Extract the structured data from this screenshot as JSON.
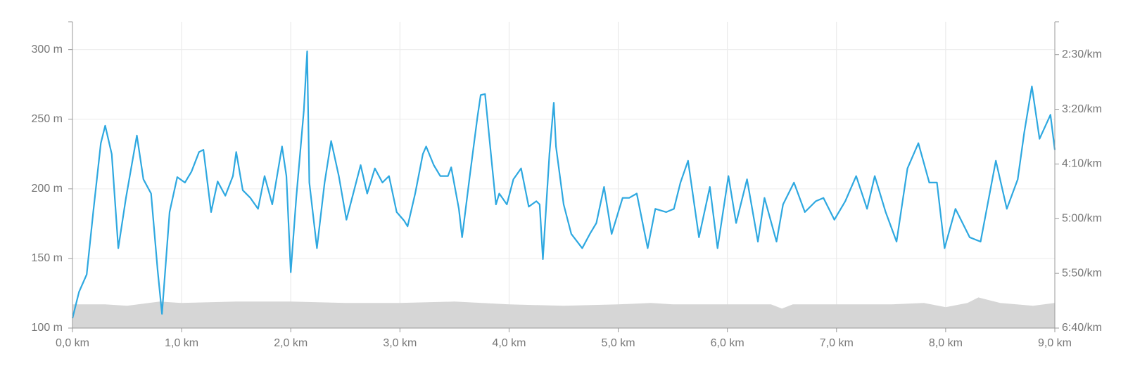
{
  "chart_data": {
    "type": "line",
    "xlim": [
      0,
      9
    ],
    "xticks": [
      {
        "value": 0,
        "label": "0,0 km"
      },
      {
        "value": 1,
        "label": "1,0 km"
      },
      {
        "value": 2,
        "label": "2,0 km"
      },
      {
        "value": 3,
        "label": "3,0 km"
      },
      {
        "value": 4,
        "label": "4,0 km"
      },
      {
        "value": 5,
        "label": "5,0 km"
      },
      {
        "value": 6,
        "label": "6,0 km"
      },
      {
        "value": 7,
        "label": "7,0 km"
      },
      {
        "value": 8,
        "label": "8,0 km"
      },
      {
        "value": 9,
        "label": "9,0 km"
      }
    ],
    "ylim": [
      100,
      320
    ],
    "yticks": [
      {
        "value": 100,
        "label": "100 m"
      },
      {
        "value": 150,
        "label": "150 m"
      },
      {
        "value": 200,
        "label": "200 m"
      },
      {
        "value": 250,
        "label": "250 m"
      },
      {
        "value": 300,
        "label": "300 m"
      }
    ],
    "y2lim": [
      400,
      120
    ],
    "y2ticks": [
      {
        "value": 150,
        "label": "2:30/km"
      },
      {
        "value": 200,
        "label": "3:20/km"
      },
      {
        "value": 250,
        "label": "4:10/km"
      },
      {
        "value": 300,
        "label": "5:00/km"
      },
      {
        "value": 350,
        "label": "5:50/km"
      },
      {
        "value": 400,
        "label": "6:40/km"
      }
    ],
    "grid": true,
    "series": [
      {
        "kind": "area",
        "color": "#d6d6d6",
        "x": [
          0,
          0.3,
          0.5,
          0.8,
          1.0,
          1.5,
          2.0,
          2.5,
          3.0,
          3.5,
          4.0,
          4.5,
          5.0,
          5.3,
          5.5,
          6.0,
          6.4,
          6.5,
          6.6,
          7.0,
          7.5,
          7.8,
          8.0,
          8.2,
          8.3,
          8.5,
          8.8,
          9.0
        ],
        "values": [
          117,
          117,
          116,
          119,
          118,
          119,
          119,
          118,
          118,
          119,
          117,
          116,
          117,
          118,
          117,
          117,
          117,
          114,
          117,
          117,
          117,
          118,
          115,
          118,
          122,
          118,
          116,
          118
        ]
      },
      {
        "kind": "line",
        "axis": "y2",
        "color": "#2ea8e0",
        "x": [
          0.0,
          0.06,
          0.13,
          0.19,
          0.26,
          0.3,
          0.36,
          0.42,
          0.49,
          0.56,
          0.59,
          0.65,
          0.72,
          0.78,
          0.82,
          0.89,
          0.96,
          1.03,
          1.09,
          1.16,
          1.2,
          1.27,
          1.33,
          1.4,
          1.47,
          1.5,
          1.56,
          1.63,
          1.7,
          1.76,
          1.83,
          1.92,
          1.96,
          2.0,
          2.05,
          2.12,
          2.15,
          2.17,
          2.24,
          2.31,
          2.37,
          2.44,
          2.51,
          2.58,
          2.64,
          2.7,
          2.77,
          2.84,
          2.9,
          2.97,
          3.04,
          3.07,
          3.14,
          3.21,
          3.24,
          3.31,
          3.37,
          3.44,
          3.47,
          3.54,
          3.57,
          3.64,
          3.71,
          3.74,
          3.78,
          3.84,
          3.88,
          3.91,
          3.98,
          4.04,
          4.11,
          4.18,
          4.25,
          4.28,
          4.31,
          4.37,
          4.41,
          4.43,
          4.5,
          4.57,
          4.67,
          4.74,
          4.8,
          4.87,
          4.94,
          5.04,
          5.1,
          5.17,
          5.27,
          5.34,
          5.44,
          5.51,
          5.57,
          5.64,
          5.74,
          5.84,
          5.91,
          6.01,
          6.08,
          6.18,
          6.28,
          6.34,
          6.45,
          6.51,
          6.61,
          6.71,
          6.81,
          6.88,
          6.98,
          7.08,
          7.18,
          7.28,
          7.35,
          7.45,
          7.55,
          7.65,
          7.75,
          7.85,
          7.92,
          7.99,
          8.09,
          8.22,
          8.32,
          8.46,
          8.56,
          8.66,
          8.72,
          8.79,
          8.86,
          8.96,
          9.0
        ],
        "values": [
          391,
          367,
          351,
          294,
          231,
          215,
          241,
          327,
          281,
          241,
          224,
          264,
          277,
          347,
          387,
          294,
          262,
          267,
          257,
          239,
          237,
          294,
          266,
          279,
          261,
          239,
          274,
          281,
          291,
          261,
          287,
          234,
          261,
          349,
          281,
          201,
          147,
          267,
          327,
          267,
          229,
          261,
          301,
          274,
          251,
          277,
          254,
          267,
          261,
          294,
          302,
          307,
          277,
          241,
          234,
          251,
          261,
          261,
          253,
          291,
          317,
          261,
          207,
          187,
          186,
          247,
          287,
          277,
          287,
          264,
          254,
          289,
          284,
          287,
          337,
          241,
          194,
          234,
          287,
          314,
          327,
          314,
          304,
          271,
          314,
          281,
          281,
          277,
          327,
          291,
          294,
          291,
          267,
          247,
          317,
          271,
          327,
          261,
          304,
          264,
          321,
          281,
          321,
          287,
          267,
          294,
          284,
          281,
          301,
          284,
          261,
          291,
          261,
          294,
          321,
          254,
          231,
          267,
          267,
          327,
          291,
          317,
          321,
          247,
          291,
          264,
          221,
          179,
          227,
          205,
          237
        ]
      }
    ]
  }
}
